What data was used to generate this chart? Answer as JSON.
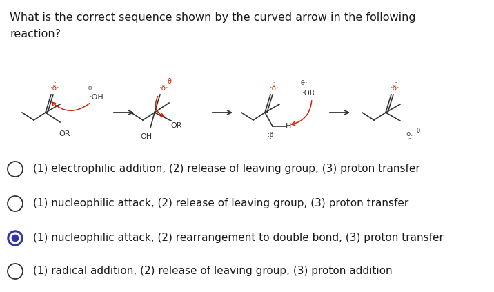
{
  "title_line1": "What is the correct sequence shown by the curved arrow in the following",
  "title_line2": "reaction?",
  "title_fontsize": 11.5,
  "title_color": "#1a1a1a",
  "background_color": "#ffffff",
  "options": [
    "(1) electrophilic addition, (2) release of leaving group, (3) proton transfer",
    "(1) nucleophilic attack, (2) release of leaving group, (3) proton transfer",
    "(1) nucleophilic attack, (2) rearrangement to double bond, (3) proton transfer",
    "(1) radical addition, (2) release of leaving group, (3) proton addition"
  ],
  "selected_option": 2,
  "option_fontsize": 11,
  "option_color": "#1a1a1a",
  "figsize": [
    7.16,
    4.23
  ],
  "dpi": 100,
  "struct_col": "#333333",
  "red_col": "#cc2200",
  "arrow_col": "#333333"
}
